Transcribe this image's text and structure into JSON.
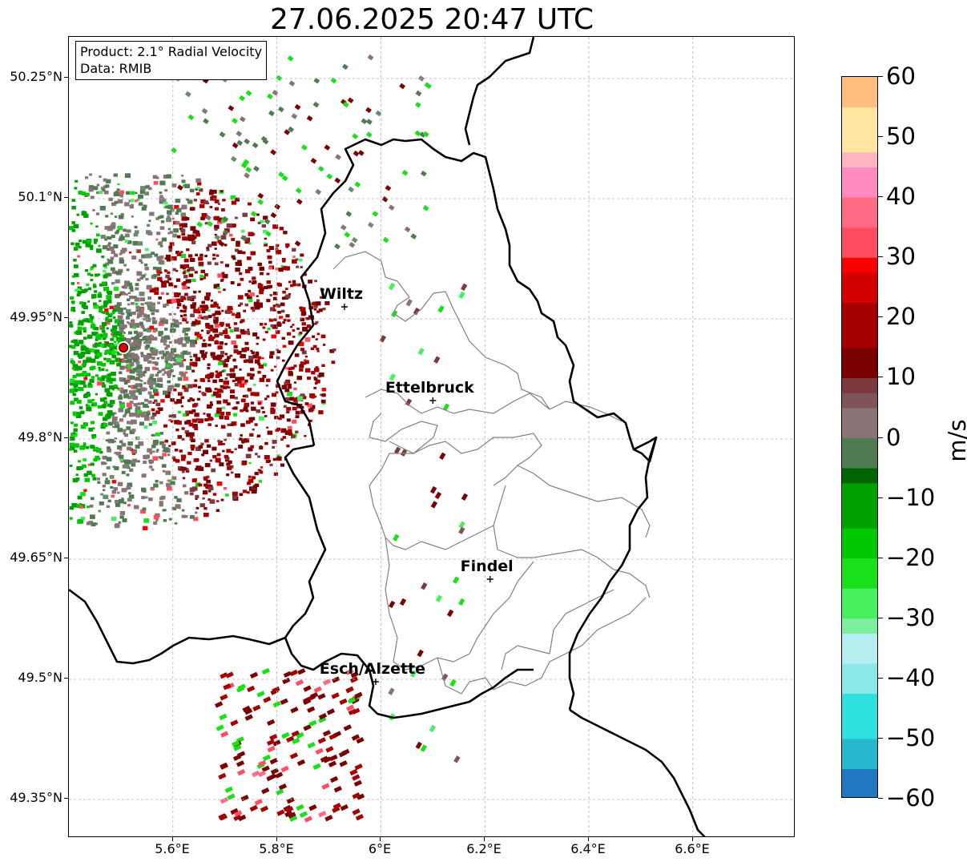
{
  "title": "27.06.2025 20:47 UTC",
  "info": {
    "product": "Product: 2.1° Radial Velocity",
    "source": "Data: RMIB"
  },
  "axes": {
    "lat_ticks": [
      "50.25°N",
      "50.1°N",
      "49.95°N",
      "49.8°N",
      "49.65°N",
      "49.5°N",
      "49.35°N"
    ],
    "lon_ticks": [
      "5.6°E",
      "5.8°E",
      "6°E",
      "6.2°E",
      "6.4°E",
      "6.6°E"
    ]
  },
  "cities": [
    {
      "name": "Wiltz",
      "lon": 5.93,
      "lat": 49.965
    },
    {
      "name": "Ettelbruck",
      "lon": 6.1,
      "lat": 49.848
    },
    {
      "name": "Findel",
      "lon": 6.21,
      "lat": 49.625
    },
    {
      "name": "Esch/Alzette",
      "lon": 5.99,
      "lat": 49.497
    }
  ],
  "radar_site": {
    "lon": 5.505,
    "lat": 49.914
  },
  "colorbar": {
    "unit": "m/s",
    "min": -60,
    "max": 60,
    "tick_labels": [
      "60",
      "50",
      "40",
      "30",
      "20",
      "10",
      "0",
      "−10",
      "−20",
      "−30",
      "−40",
      "−50",
      "−60"
    ],
    "stops": [
      {
        "v": -60,
        "c": "#1f78c0"
      },
      {
        "v": -55,
        "c": "#27b7cf"
      },
      {
        "v": -50,
        "c": "#2ee0e0"
      },
      {
        "v": -42,
        "c": "#8ae8e8"
      },
      {
        "v": -37,
        "c": "#b6eef0"
      },
      {
        "v": -33,
        "c": "#7eeea0"
      },
      {
        "v": -30,
        "c": "#48f060"
      },
      {
        "v": -26,
        "c": "#1ae01a"
      },
      {
        "v": -20,
        "c": "#00c800"
      },
      {
        "v": -14,
        "c": "#00a000"
      },
      {
        "v": -8,
        "c": "#006400"
      },
      {
        "v": -6,
        "c": "#4f7a52"
      },
      {
        "v": 0,
        "c": "#6e8a6e"
      },
      {
        "v": 1,
        "c": "#8a7376"
      },
      {
        "v": 6,
        "c": "#7f5358"
      },
      {
        "v": 8,
        "c": "#7a3a3e"
      },
      {
        "v": 10,
        "c": "#7a0000"
      },
      {
        "v": 16,
        "c": "#a50000"
      },
      {
        "v": 22,
        "c": "#d40000"
      },
      {
        "v": 28,
        "c": "#f80000"
      },
      {
        "v": 31,
        "c": "#ff4e60"
      },
      {
        "v": 36,
        "c": "#ff6a84"
      },
      {
        "v": 40,
        "c": "#ff8ac0"
      },
      {
        "v": 44,
        "c": "#ffb4c0"
      },
      {
        "v": 48,
        "c": "#ffe6a0"
      },
      {
        "v": 54,
        "c": "#ffbd80"
      },
      {
        "v": 60,
        "c": "#ff9a55"
      }
    ]
  }
}
